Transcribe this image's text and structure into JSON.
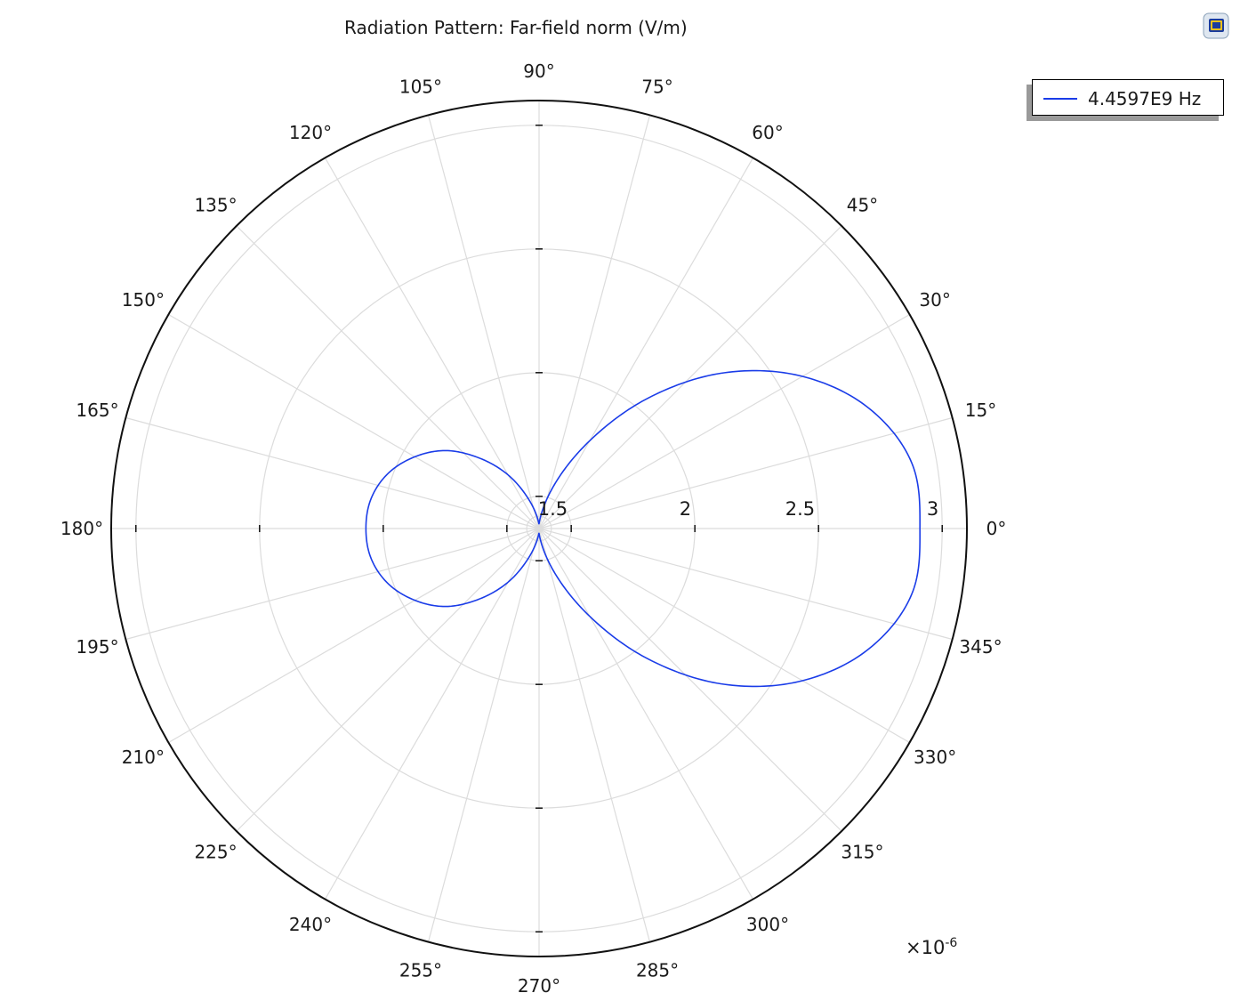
{
  "chart_data": {
    "type": "line",
    "polar": true,
    "title": "Radiation Pattern: Far-field norm (V/m)",
    "angle_unit": "deg",
    "angle_ticks": [
      0,
      15,
      30,
      45,
      60,
      75,
      90,
      105,
      120,
      135,
      150,
      165,
      180,
      195,
      210,
      225,
      240,
      255,
      270,
      285,
      300,
      315,
      330,
      345
    ],
    "angle_tick_labels": [
      "0°",
      "15°",
      "30°",
      "45°",
      "60°",
      "75°",
      "90°",
      "105°",
      "120°",
      "135°",
      "150°",
      "165°",
      "180°",
      "195°",
      "210°",
      "225°",
      "240°",
      "255°",
      "270°",
      "285°",
      "300°",
      "315°",
      "330°",
      "345°"
    ],
    "radial_range": [
      1.37,
      3.1
    ],
    "radial_ticks": [
      1.5,
      2,
      2.5,
      3
    ],
    "radial_tick_labels": [
      "1.5",
      "2",
      "2.5",
      "3"
    ],
    "radial_multiplier": "×10",
    "radial_multiplier_exp": "-6",
    "grid": true,
    "legend_position": "top-right",
    "series": [
      {
        "name": "4.4597E9 Hz",
        "color": "#1a3ce8",
        "theta": [
          0,
          10,
          20,
          30,
          40,
          50,
          60,
          70,
          80,
          90,
          100,
          110,
          120,
          130,
          140,
          150,
          160,
          170,
          180,
          190,
          200,
          210,
          220,
          230,
          240,
          250,
          260,
          270,
          280,
          290,
          300,
          310,
          320,
          330,
          340,
          350,
          360
        ],
        "r": [
          2.91,
          2.9,
          2.79,
          2.6,
          2.35,
          2.06,
          1.78,
          1.57,
          1.44,
          1.39,
          1.42,
          1.5,
          1.62,
          1.74,
          1.86,
          1.95,
          2.02,
          2.06,
          2.07,
          2.06,
          2.02,
          1.95,
          1.86,
          1.74,
          1.62,
          1.5,
          1.42,
          1.39,
          1.44,
          1.57,
          1.78,
          2.06,
          2.35,
          2.6,
          2.79,
          2.9,
          2.91
        ]
      }
    ]
  }
}
